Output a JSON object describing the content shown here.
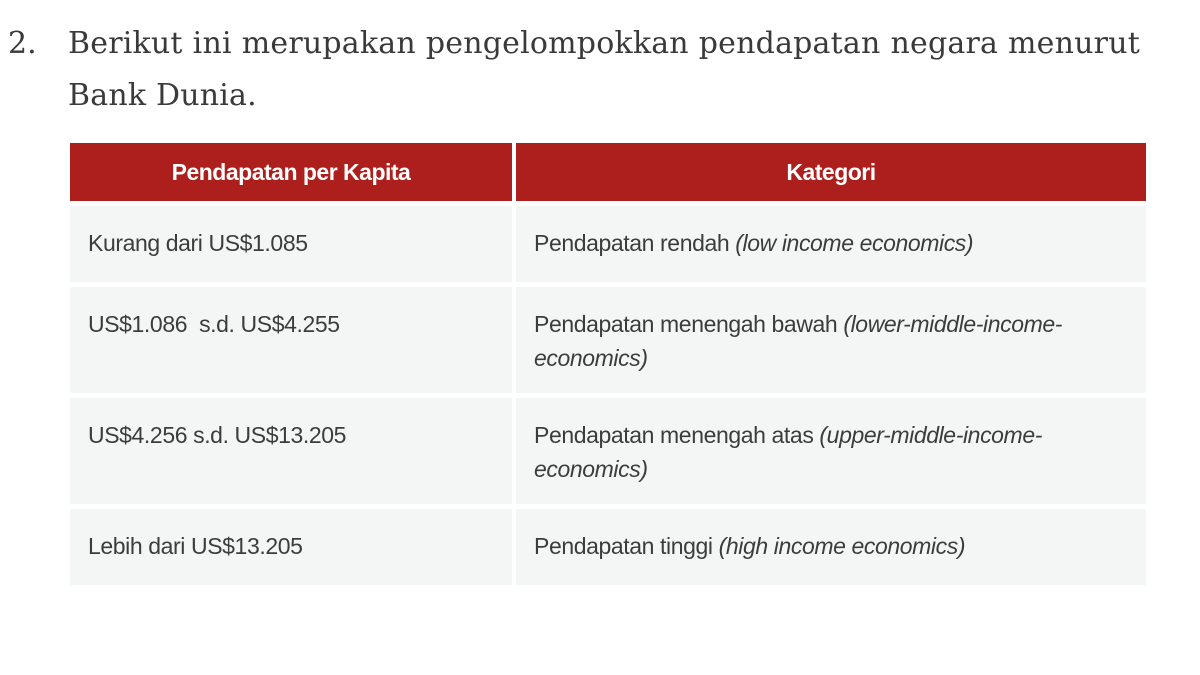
{
  "question": {
    "number": "2.",
    "text": "Berikut ini merupakan pengelompokkan pendapatan negara menurut Bank Dunia."
  },
  "table": {
    "header_color": "#ad1f1c",
    "headers": [
      "Pendapatan per Kapita",
      "Kategori"
    ],
    "rows": [
      {
        "range": "Kurang dari US$1.085",
        "category": "Pendapatan rendah",
        "category_en": "(low income economics)"
      },
      {
        "range": "US$1.086  s.d. US$4.255",
        "category": "Pendapatan menengah bawah",
        "category_en": "(lower-middle-income-economics)"
      },
      {
        "range": "US$4.256 s.d. US$13.205",
        "category": "Pendapatan menengah atas",
        "category_en": "(upper-middle-income-economics)"
      },
      {
        "range": "Lebih dari US$13.205",
        "category": "Pendapatan tinggi",
        "category_en": "(high income economics)"
      }
    ]
  }
}
